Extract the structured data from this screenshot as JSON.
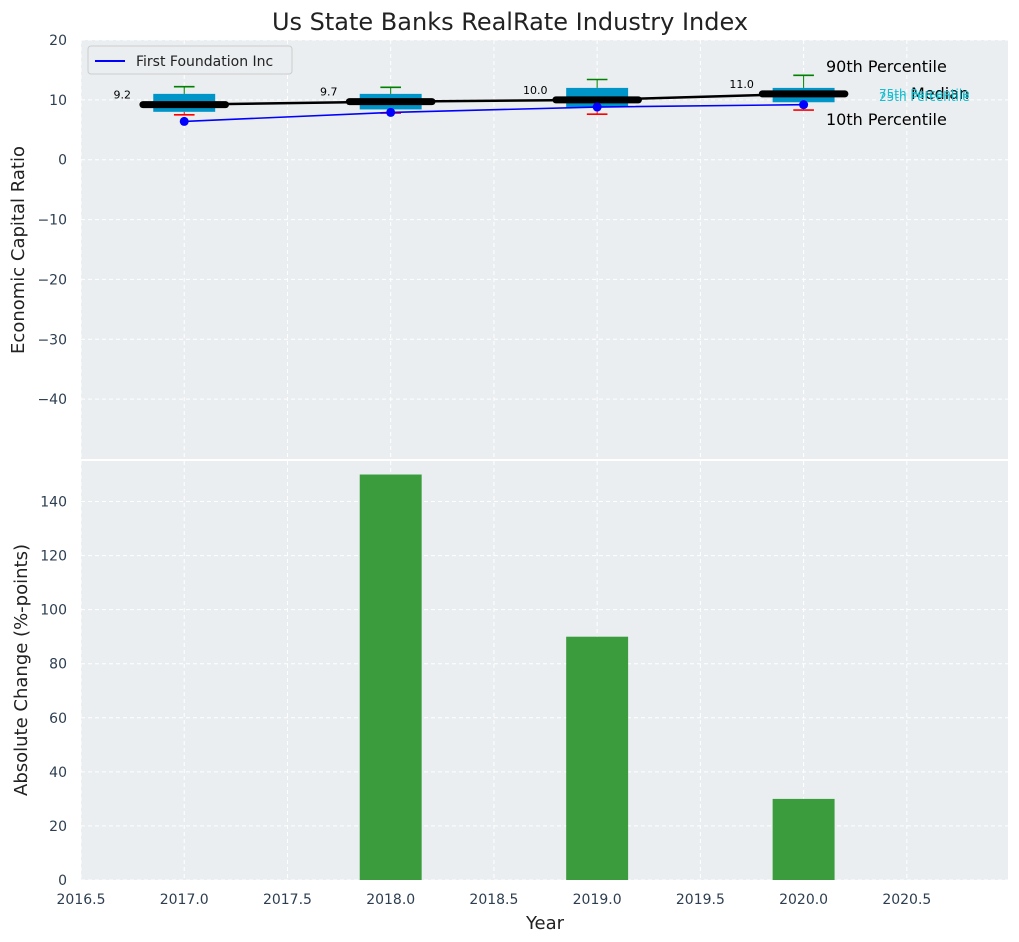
{
  "chart_data": {
    "type": "box+line+bar",
    "title": "Us State Banks RealRate Industry Index",
    "xlabel": "Year",
    "x_ticks": [
      "2016.5",
      "2017.0",
      "2017.5",
      "2018.0",
      "2018.5",
      "2019.0",
      "2019.5",
      "2020.0",
      "2020.5"
    ],
    "x_tick_values": [
      2016.5,
      2017.0,
      2017.5,
      2018.0,
      2018.5,
      2019.0,
      2019.5,
      2020.0,
      2020.5
    ],
    "xlim": [
      2016.5,
      2020.99
    ],
    "top": {
      "ylabel": "Economic Capital Ratio",
      "ylim": [
        -50,
        20
      ],
      "y_ticks": [
        20,
        10,
        0,
        -10,
        -20,
        -30,
        -40
      ],
      "y_tick_labels": [
        "20",
        "10",
        "0",
        "−10",
        "−20",
        "−30",
        "−40"
      ],
      "years": [
        2017,
        2018,
        2019,
        2020
      ],
      "p10": [
        7.5,
        7.8,
        7.6,
        8.3
      ],
      "p25": [
        8.0,
        8.4,
        8.8,
        9.6
      ],
      "p75": [
        11.0,
        11.0,
        12.0,
        12.0
      ],
      "p90": [
        12.2,
        12.1,
        13.4,
        14.1
      ],
      "median": [
        9.2,
        9.7,
        10.0,
        11.0
      ],
      "median_labels": [
        "9.2",
        "9.7",
        "10.0",
        "11.0"
      ],
      "series": [
        {
          "name": "First Foundation Inc",
          "values": [
            6.4,
            7.9,
            8.8,
            9.2
          ],
          "color": "#0000ff"
        }
      ],
      "legend": "top-left",
      "annotations": {
        "p90": "90th Percentile",
        "median": "Median",
        "p10": "10th Percentile",
        "p75": "75th Percentile",
        "p25": "25th Percentile"
      }
    },
    "bottom": {
      "ylabel": "Absolute Change (%-points)",
      "ylim": [
        0,
        155
      ],
      "y_ticks": [
        0,
        20,
        40,
        60,
        80,
        100,
        120,
        140
      ],
      "categories": [
        2018,
        2019,
        2020
      ],
      "values": [
        150,
        90,
        30
      ],
      "color": "#3a9c3d"
    },
    "colors": {
      "box": "#0095c8",
      "median": "#000000",
      "whisker_top": "#008000",
      "whisker_bottom": "#ff0000",
      "panel_bg": "#eaeef0",
      "grid": "#ffffff"
    }
  }
}
